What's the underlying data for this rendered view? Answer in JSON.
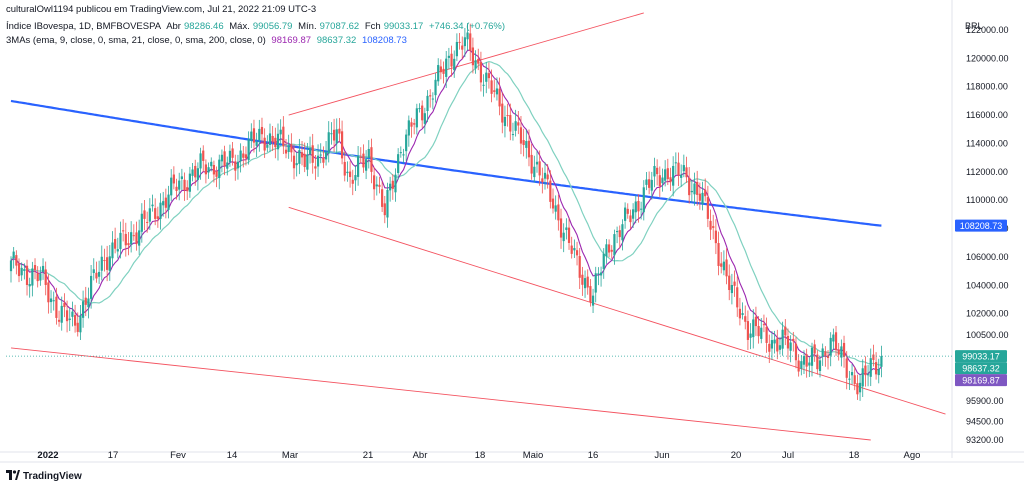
{
  "header": {
    "publisher": "culturalOwl1194 publicou em TradingView.com, Jul 21, 2022 21:09 UTC-3",
    "symbol": "Índice IBovespa, 1D, BMFBOVESPA",
    "open_label": "Abr",
    "open_value": "98286.46",
    "high_label": "Máx.",
    "high_value": "99056.79",
    "low_label": "Mín.",
    "low_value": "97087.62",
    "close_label": "Fch",
    "close_value": "99033.17",
    "change": "+746.34 (+0.76%)",
    "indicator_label": "3MAs (ema, 9, close, 0, sma, 21, close, 0, sma, 200, close, 0)",
    "ema_value": "98169.87",
    "sma21_value": "98637.32",
    "sma200_value": "108208.73"
  },
  "currency": "BRL",
  "brand": "TradingView",
  "colors": {
    "up": "#26a69a",
    "down": "#ef5350",
    "ema9": "#9c27b0",
    "sma21": "#7fd1c0",
    "sma200": "#2962ff",
    "trendline": "#f23645",
    "ema_badge": "#7e57c2",
    "sma21_badge": "#26a69a",
    "sma200_badge": "#2962ff",
    "price_badge": "#26a69a"
  },
  "chart_data": {
    "type": "candlestick",
    "y_ticks": [
      122000,
      120000,
      118000,
      116000,
      114000,
      112000,
      110000,
      108000,
      106000,
      104000,
      102000,
      100500,
      95900,
      94500,
      93200
    ],
    "y_tick_labels": [
      "122000.00",
      "120000.00",
      "118000.00",
      "116000.00",
      "114000.00",
      "112000.00",
      "110000.00",
      "108000.00",
      "106000.00",
      "104000.00",
      "102000.00",
      "100500.00",
      "95900.00",
      "94500.00",
      "93200.00"
    ],
    "x_labels": [
      "2022",
      "17",
      "Fev",
      "14",
      "Mar",
      "21",
      "Abr",
      "18",
      "Maio",
      "16",
      "Jun",
      "20",
      "Jul",
      "18",
      "Ago"
    ],
    "price_badges": [
      "99033.17",
      "98637.32",
      "98169.87",
      "108208.73"
    ],
    "close_path": [
      [
        0,
        105400
      ],
      [
        12,
        104400
      ],
      [
        18,
        102000
      ],
      [
        24,
        101300
      ],
      [
        35,
        106000
      ],
      [
        48,
        108000
      ],
      [
        62,
        111000
      ],
      [
        72,
        112400
      ],
      [
        82,
        112600
      ],
      [
        94,
        114600
      ],
      [
        102,
        113900
      ],
      [
        110,
        112600
      ],
      [
        116,
        113200
      ],
      [
        122,
        114700
      ],
      [
        127,
        111400
      ],
      [
        134,
        113200
      ],
      [
        140,
        109000
      ],
      [
        146,
        113800
      ],
      [
        153,
        116100
      ],
      [
        160,
        118500
      ],
      [
        166,
        120700
      ],
      [
        170,
        121100
      ],
      [
        175,
        119500
      ],
      [
        182,
        117000
      ],
      [
        190,
        114500
      ],
      [
        198,
        112000
      ],
      [
        206,
        108400
      ],
      [
        212,
        105400
      ],
      [
        218,
        103300
      ],
      [
        224,
        107000
      ],
      [
        232,
        108900
      ],
      [
        238,
        111000
      ],
      [
        246,
        112100
      ],
      [
        252,
        111700
      ],
      [
        258,
        110500
      ],
      [
        264,
        107000
      ],
      [
        270,
        103400
      ],
      [
        276,
        101100
      ],
      [
        284,
        100200
      ],
      [
        292,
        99800
      ],
      [
        296,
        98700
      ],
      [
        302,
        98600
      ],
      [
        307,
        100200
      ],
      [
        312,
        98500
      ],
      [
        318,
        96900
      ],
      [
        322,
        98300
      ],
      [
        326,
        99000
      ]
    ],
    "trendlines": [
      {
        "from": [
          104,
          116000
        ],
        "to": [
          237,
          123200
        ]
      },
      {
        "from": [
          104,
          109500
        ],
        "to": [
          350,
          95000
        ]
      },
      {
        "from": [
          0,
          99600
        ],
        "to": [
          322,
          93200
        ]
      }
    ]
  }
}
